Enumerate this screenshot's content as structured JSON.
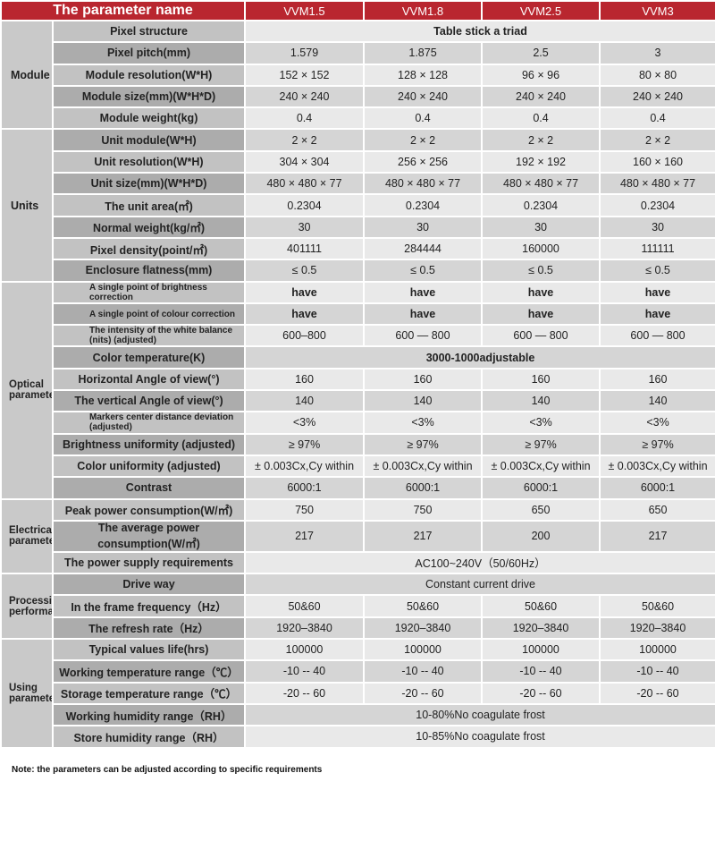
{
  "header": {
    "parameter_name": "The parameter name",
    "models": [
      "VVM1.5",
      "VVM1.8",
      "VVM2.5",
      "VVM3"
    ]
  },
  "groups": [
    {
      "name": "Module",
      "rows": [
        {
          "label": "Pixel structure",
          "merged": "Table stick a triad",
          "bold": true
        },
        {
          "label": "Pixel pitch(mm)",
          "values": [
            "1.579",
            "1.875",
            "2.5",
            "3"
          ]
        },
        {
          "label": "Module resolution(W*H)",
          "values": [
            "152 × 152",
            "128 × 128",
            "96 × 96",
            "80 × 80"
          ]
        },
        {
          "label": "Module size(mm)(W*H*D)",
          "values": [
            "240 × 240",
            "240 × 240",
            "240 × 240",
            "240 × 240"
          ]
        },
        {
          "label": "Module weight(kg)",
          "values": [
            "0.4",
            "0.4",
            "0.4",
            "0.4"
          ]
        }
      ]
    },
    {
      "name": "Units",
      "rows": [
        {
          "label": "Unit module(W*H)",
          "values": [
            "2 × 2",
            "2 × 2",
            "2 × 2",
            "2 × 2"
          ]
        },
        {
          "label": "Unit resolution(W*H)",
          "values": [
            "304 × 304",
            "256 × 256",
            "192 × 192",
            "160 × 160"
          ]
        },
        {
          "label": "Unit size(mm)(W*H*D)",
          "values": [
            "480 × 480 × 77",
            "480 × 480 × 77",
            "480 × 480 × 77",
            "480 × 480 × 77"
          ]
        },
        {
          "label": "The unit area(㎡)",
          "values": [
            "0.2304",
            "0.2304",
            "0.2304",
            "0.2304"
          ]
        },
        {
          "label": "Normal weight(kg/㎡)",
          "values": [
            "30",
            "30",
            "30",
            "30"
          ]
        },
        {
          "label": "Pixel density(point/㎡)",
          "values": [
            "401111",
            "284444",
            "160000",
            "111111"
          ]
        },
        {
          "label": "Enclosure flatness(mm)",
          "values": [
            "≤ 0.5",
            "≤ 0.5",
            "≤ 0.5",
            "≤ 0.5"
          ]
        }
      ]
    },
    {
      "name": "Optical parameters",
      "rows": [
        {
          "label": "A single point of brightness correction",
          "small": true,
          "values": [
            "have",
            "have",
            "have",
            "have"
          ],
          "bold": true
        },
        {
          "label": "A single point of colour correction",
          "small": true,
          "values": [
            "have",
            "have",
            "have",
            "have"
          ],
          "bold": true
        },
        {
          "label": "The intensity of the white balance (nits) (adjusted)",
          "small": true,
          "values": [
            "600–800",
            "600 — 800",
            "600 — 800",
            "600 — 800"
          ]
        },
        {
          "label": "Color temperature(K)",
          "merged": "3000-1000adjustable",
          "bold": true
        },
        {
          "label": "Horizontal Angle of view(°)",
          "values": [
            "160",
            "160",
            "160",
            "160"
          ]
        },
        {
          "label": "The vertical Angle of view(°)",
          "values": [
            "140",
            "140",
            "140",
            "140"
          ]
        },
        {
          "label": "Markers center distance deviation (adjusted)",
          "small": true,
          "values": [
            "<3%",
            "<3%",
            "<3%",
            "<3%"
          ]
        },
        {
          "label": "Brightness uniformity (adjusted)",
          "values": [
            "≥ 97%",
            "≥ 97%",
            "≥ 97%",
            "≥ 97%"
          ]
        },
        {
          "label": "Color uniformity (adjusted)",
          "values": [
            "± 0.003Cx,Cy within",
            "± 0.003Cx,Cy within",
            "± 0.003Cx,Cy within",
            "± 0.003Cx,Cy within"
          ]
        },
        {
          "label": "Contrast",
          "values": [
            "6000:1",
            "6000:1",
            "6000:1",
            "6000:1"
          ]
        }
      ]
    },
    {
      "name": "Electrical parameters",
      "rows": [
        {
          "label": "Peak power consumption(W/㎡)",
          "values": [
            "750",
            "750",
            "650",
            "650"
          ]
        },
        {
          "label": "The average power consumption(W/㎡)",
          "values": [
            "217",
            "217",
            "200",
            "217"
          ]
        },
        {
          "label": "The power supply requirements",
          "merged": "AC100~240V（50/60Hz）"
        }
      ]
    },
    {
      "name": "Processing performance",
      "rows": [
        {
          "label": "Drive way",
          "merged": "Constant current drive"
        },
        {
          "label": "In the frame frequency（Hz）",
          "values": [
            "50&60",
            "50&60",
            "50&60",
            "50&60"
          ]
        },
        {
          "label": "The refresh rate（Hz）",
          "values": [
            "1920–3840",
            "1920–3840",
            "1920–3840",
            "1920–3840"
          ]
        }
      ]
    },
    {
      "name": "Using parameter",
      "rows": [
        {
          "label": "Typical values life(hrs)",
          "values": [
            "100000",
            "100000",
            "100000",
            "100000"
          ]
        },
        {
          "label": "Working temperature range（℃）",
          "values": [
            "-10 -- 40",
            "-10 -- 40",
            "-10 -- 40",
            "-10 -- 40"
          ]
        },
        {
          "label": "Storage temperature range（℃）",
          "values": [
            "-20 -- 60",
            "-20 -- 60",
            "-20 -- 60",
            "-20 -- 60"
          ]
        },
        {
          "label": "Working humidity range（RH）",
          "merged": "10-80%No coagulate frost"
        },
        {
          "label": "Store humidity range（RH）",
          "merged": "10-85%No coagulate frost"
        }
      ]
    }
  ],
  "note": "Note: the parameters can be adjusted according to specific requirements",
  "colors": {
    "header": "#b9262f",
    "group": "#c9c9c9"
  }
}
